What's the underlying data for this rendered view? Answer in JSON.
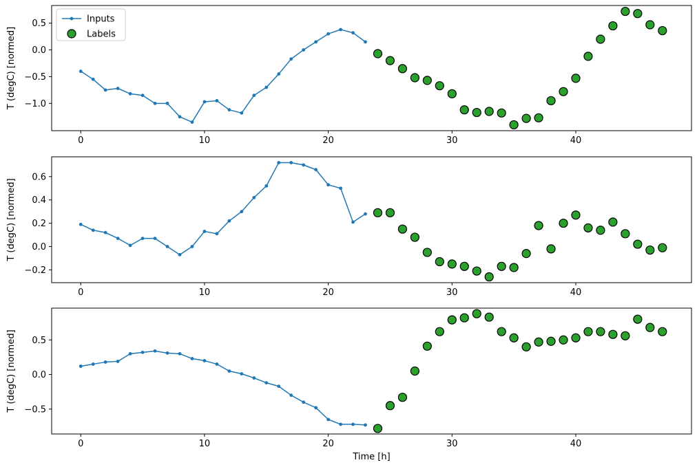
{
  "figure": {
    "background": "#ffffff",
    "xlabel": "Time [h]"
  },
  "colors": {
    "inputs_line": "#1f77b4",
    "labels_marker": "#2ca02c",
    "marker_edge": "#000000",
    "legend_border": "#cccccc",
    "spine": "#000000"
  },
  "legend": {
    "entries": [
      "Inputs",
      "Labels"
    ],
    "position": "upper-left-subplot-1"
  },
  "chart_data": [
    {
      "type": "line",
      "title": "",
      "xlabel": "",
      "ylabel": "T (degC) [normed]",
      "xlim": [
        -2.35,
        49.35
      ],
      "ylim": [
        -1.51,
        0.83
      ],
      "xticks": [
        0,
        10,
        20,
        30,
        40
      ],
      "yticks": [
        0.5,
        0.0,
        -0.5,
        -1.0
      ],
      "grid": false,
      "legend_visible": true,
      "series": [
        {
          "name": "Inputs",
          "type": "line",
          "color": "#1f77b4",
          "x": [
            0,
            1,
            2,
            3,
            4,
            5,
            6,
            7,
            8,
            9,
            10,
            11,
            12,
            13,
            14,
            15,
            16,
            17,
            18,
            19,
            20,
            21,
            22,
            23
          ],
          "y": [
            -0.4,
            -0.55,
            -0.75,
            -0.72,
            -0.82,
            -0.85,
            -1.0,
            -1.0,
            -1.25,
            -1.35,
            -0.97,
            -0.95,
            -1.12,
            -1.18,
            -0.85,
            -0.7,
            -0.45,
            -0.17,
            0.0,
            0.15,
            0.3,
            0.38,
            0.32,
            0.15
          ]
        },
        {
          "name": "Labels",
          "type": "scatter",
          "color": "#2ca02c",
          "edge": "#000000",
          "x": [
            24,
            25,
            26,
            27,
            28,
            29,
            30,
            31,
            32,
            33,
            34,
            35,
            36,
            37,
            38,
            39,
            40,
            41,
            42,
            43,
            44,
            45,
            46,
            47
          ],
          "y": [
            -0.07,
            -0.2,
            -0.35,
            -0.52,
            -0.57,
            -0.67,
            -0.82,
            -1.12,
            -1.17,
            -1.15,
            -1.18,
            -1.4,
            -1.28,
            -1.27,
            -0.95,
            -0.78,
            -0.53,
            -0.12,
            0.2,
            0.45,
            0.72,
            0.68,
            0.47,
            0.36
          ]
        }
      ]
    },
    {
      "type": "line",
      "title": "",
      "xlabel": "",
      "ylabel": "T (degC) [normed]",
      "xlim": [
        -2.35,
        49.35
      ],
      "ylim": [
        -0.31,
        0.77
      ],
      "xticks": [
        0,
        10,
        20,
        30,
        40
      ],
      "yticks": [
        0.6,
        0.4,
        0.2,
        0.0,
        -0.2
      ],
      "grid": false,
      "legend_visible": false,
      "series": [
        {
          "name": "Inputs",
          "type": "line",
          "color": "#1f77b4",
          "x": [
            0,
            1,
            2,
            3,
            4,
            5,
            6,
            7,
            8,
            9,
            10,
            11,
            12,
            13,
            14,
            15,
            16,
            17,
            18,
            19,
            20,
            21,
            22,
            23
          ],
          "y": [
            0.19,
            0.14,
            0.12,
            0.07,
            0.01,
            0.07,
            0.07,
            0.0,
            -0.07,
            0.0,
            0.13,
            0.11,
            0.22,
            0.3,
            0.42,
            0.52,
            0.72,
            0.72,
            0.7,
            0.66,
            0.53,
            0.5,
            0.21,
            0.28
          ]
        },
        {
          "name": "Labels",
          "type": "scatter",
          "color": "#2ca02c",
          "edge": "#000000",
          "x": [
            24,
            25,
            26,
            27,
            28,
            29,
            30,
            31,
            32,
            33,
            34,
            35,
            36,
            37,
            38,
            39,
            40,
            41,
            42,
            43,
            44,
            45,
            46,
            47
          ],
          "y": [
            0.29,
            0.29,
            0.15,
            0.08,
            -0.05,
            -0.13,
            -0.15,
            -0.17,
            -0.21,
            -0.26,
            -0.17,
            -0.18,
            -0.06,
            0.18,
            -0.02,
            0.2,
            0.27,
            0.16,
            0.14,
            0.21,
            0.11,
            0.02,
            -0.03,
            -0.01
          ]
        }
      ]
    },
    {
      "type": "line",
      "title": "",
      "xlabel": "Time [h]",
      "ylabel": "T (degC) [normed]",
      "xlim": [
        -2.35,
        49.35
      ],
      "ylim": [
        -0.86,
        0.96
      ],
      "xticks": [
        0,
        10,
        20,
        30,
        40
      ],
      "yticks": [
        0.5,
        0.0,
        -0.5
      ],
      "grid": false,
      "legend_visible": false,
      "series": [
        {
          "name": "Inputs",
          "type": "line",
          "color": "#1f77b4",
          "x": [
            0,
            1,
            2,
            3,
            4,
            5,
            6,
            7,
            8,
            9,
            10,
            11,
            12,
            13,
            14,
            15,
            16,
            17,
            18,
            19,
            20,
            21,
            22,
            23
          ],
          "y": [
            0.12,
            0.15,
            0.18,
            0.19,
            0.3,
            0.32,
            0.34,
            0.31,
            0.3,
            0.23,
            0.2,
            0.15,
            0.05,
            0.01,
            -0.05,
            -0.12,
            -0.17,
            -0.3,
            -0.4,
            -0.48,
            -0.65,
            -0.72,
            -0.72,
            -0.73
          ]
        },
        {
          "name": "Labels",
          "type": "scatter",
          "color": "#2ca02c",
          "edge": "#000000",
          "x": [
            24,
            25,
            26,
            27,
            28,
            29,
            30,
            31,
            32,
            33,
            34,
            35,
            36,
            37,
            38,
            39,
            40,
            41,
            42,
            43,
            44,
            45,
            46,
            47
          ],
          "y": [
            -0.78,
            -0.45,
            -0.33,
            0.05,
            0.41,
            0.62,
            0.79,
            0.82,
            0.88,
            0.83,
            0.62,
            0.53,
            0.4,
            0.47,
            0.48,
            0.5,
            0.53,
            0.62,
            0.62,
            0.58,
            0.56,
            0.8,
            0.68,
            0.62
          ]
        }
      ]
    }
  ]
}
